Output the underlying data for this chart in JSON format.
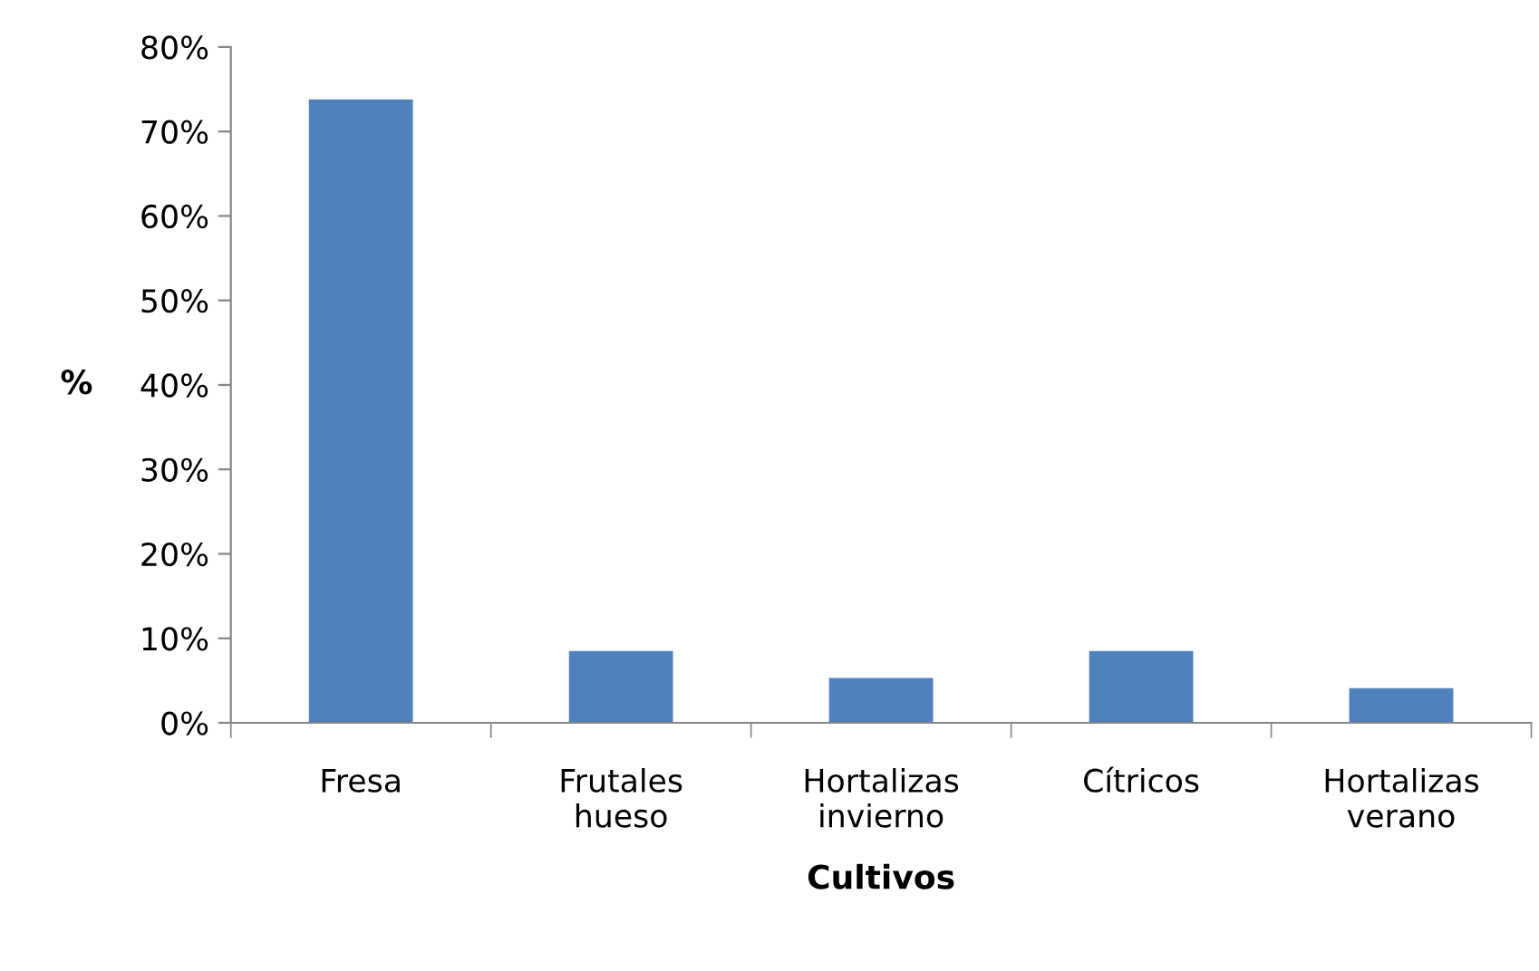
{
  "chart_data": {
    "type": "bar",
    "xlabel": "Cultivos",
    "ylabel": "%",
    "categories": [
      "Fresa",
      "Frutales\nhueso",
      "Hortalizas\ninvierno",
      "Cítricos",
      "Hortalizas\nverano"
    ],
    "values": [
      73.8,
      8.5,
      5.3,
      8.5,
      4.1
    ],
    "color": "#4f81bd",
    "ylim": [
      0,
      80
    ],
    "yticks": [
      {
        "value": 0,
        "label": "0%"
      },
      {
        "value": 10,
        "label": "10%"
      },
      {
        "value": 20,
        "label": "20%"
      },
      {
        "value": 30,
        "label": "30%"
      },
      {
        "value": 40,
        "label": "40%"
      },
      {
        "value": 50,
        "label": "50%"
      },
      {
        "value": 60,
        "label": "60%"
      },
      {
        "value": 70,
        "label": "70%"
      },
      {
        "value": 80,
        "label": "80%"
      }
    ],
    "grid": false,
    "legend": false
  }
}
